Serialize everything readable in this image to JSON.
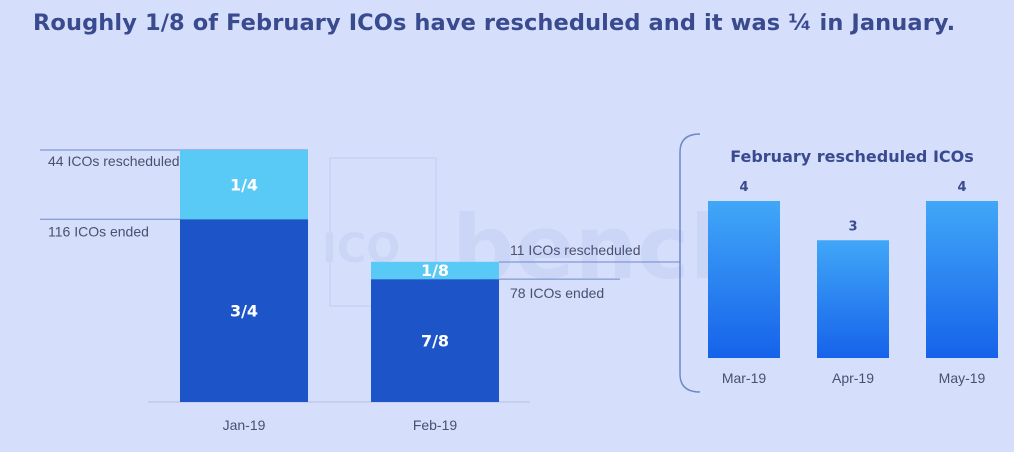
{
  "title": "Roughly 1/8 of February ICOs have rescheduled and it was ¼ in January.",
  "colors": {
    "background": "#d5dffb",
    "ended": "#1d55c8",
    "rescheduled": "#59c9f5",
    "right_bar_top": "#41a7f8",
    "right_bar_bottom": "#1662ea",
    "title": "#3a4a8f"
  },
  "chart_data": [
    {
      "type": "bar",
      "stacked": true,
      "categories": [
        "Jan-19",
        "Feb-19"
      ],
      "series": [
        {
          "values": [
            116,
            78
          ],
          "segment_labels": [
            "3/4",
            "7/8"
          ]
        },
        {
          "values": [
            44,
            11
          ],
          "segment_labels": [
            "1/4",
            "1/8"
          ]
        }
      ],
      "annotations": [
        {
          "category": "Jan-19",
          "text": "44 ICOs rescheduled"
        },
        {
          "category": "Jan-19",
          "text": "116 ICOs ended"
        },
        {
          "category": "Feb-19",
          "text": "11 ICOs rescheduled"
        },
        {
          "category": "Feb-19",
          "text": "78 ICOs ended"
        }
      ]
    },
    {
      "type": "bar",
      "title": "February rescheduled ICOs",
      "categories": [
        "Mar-19",
        "Apr-19",
        "May-19"
      ],
      "values": [
        4,
        3,
        4
      ],
      "data_labels": [
        "4",
        "3",
        "4"
      ]
    }
  ]
}
